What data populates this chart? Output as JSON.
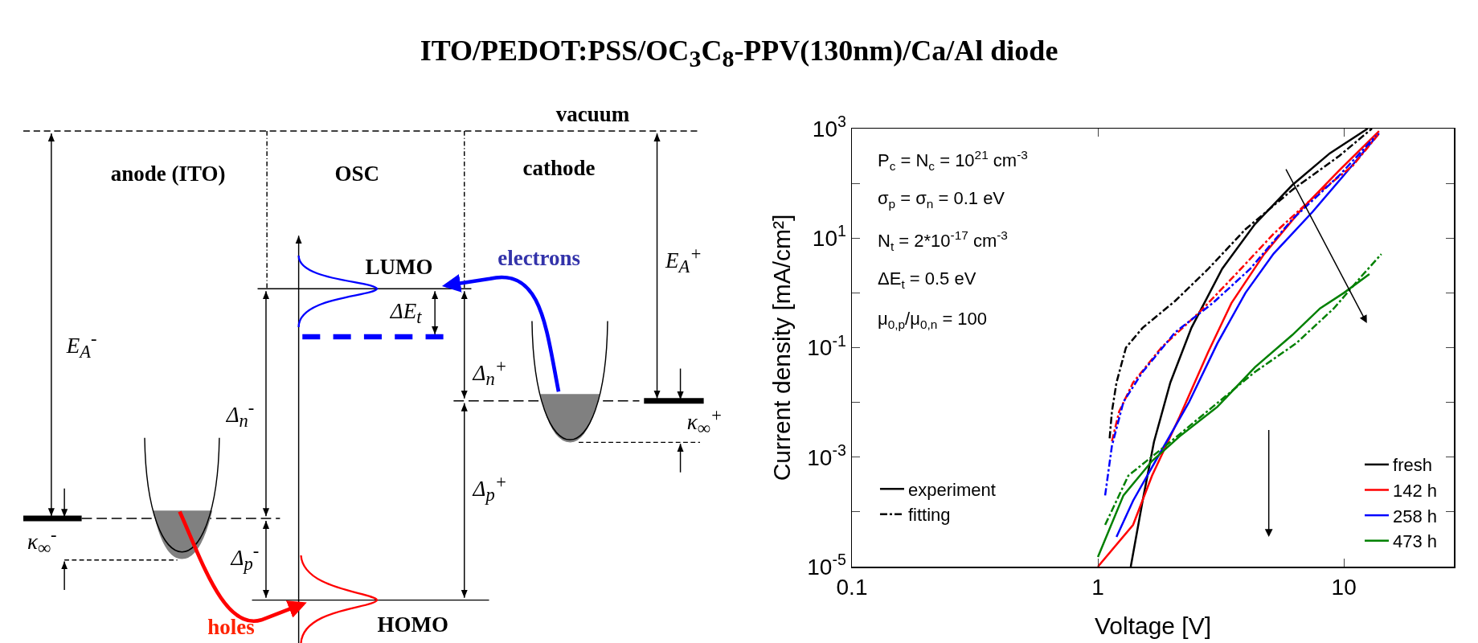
{
  "chart_data": [
    {
      "type": "other",
      "title": "ITO/PEDOT:PSS/OC$_{3}$C$_{8}$-PPV(130nm)/Ca/Al diode",
      "annotations": [
        "vacuum",
        "anode (ITO)",
        "OSC",
        "cathode",
        "LUMO",
        "electrons",
        "ΔE$_{t}$",
        "E$_{A}$$^{-}$",
        "E$_{A}$$^{+}$",
        "Δ$_{n}$$^{-}$",
        "Δ$_{n}$$^{+}$",
        "Δ$_{p}$$^{-}$",
        "Δ$_{p}$$^{+}$",
        "κ$_{∞}$$^{-}$",
        "κ$_{∞}$$^{+}$",
        "HOMO",
        "holes"
      ]
    },
    {
      "type": "line",
      "xlabel": "Voltage [V]",
      "ylabel": "Current density [mA/cm²]",
      "log": "xy",
      "xlim": [
        0.1,
        28
      ],
      "xticks": [
        0.1,
        1,
        10
      ],
      "ylim": [
        1e-05,
        1000
      ],
      "yticks": [
        {
          "value": 1e-05,
          "label": "10$^{-5}$"
        },
        {
          "value": 0.0001,
          "label": null
        },
        {
          "value": 0.001,
          "label": "10$^{-3}$"
        },
        {
          "value": 0.01,
          "label": null
        },
        {
          "value": 0.1,
          "label": "10$^{-1}$"
        },
        {
          "value": 1,
          "label": null
        },
        {
          "value": 10,
          "label": "10$^{1}$"
        },
        {
          "value": 100,
          "label": null
        },
        {
          "value": 1000,
          "label": "10$^{3}$"
        }
      ],
      "grid": false,
      "legend": "bottom right",
      "marker": "none",
      "annotations": [
        "P$_{c}$ = N$_{c}$ = 10$^{21}$ cm$^{-3}$",
        "σ$_{p}$ = σ$_{n}$ = 0.1 eV",
        "N$_{t}$ = 2*10$^{-17}$ cm$^{-3}$",
        "ΔE$_{t}$ = 0.5 eV",
        "μ$_{0,p}$/μ$_{0,n}$ = 100"
      ],
      "series": [
        {
          "name": "fresh",
          "color": "#000000",
          "line_style": "solid",
          "x": [
            1.36,
            1.52,
            1.69,
            1.97,
            2.4,
            3.2,
            4.35,
            6.17,
            8.77,
            12.5
          ],
          "values": [
            1e-05,
            0.00016,
            0.0019,
            0.023,
            0.23,
            2.75,
            18,
            93,
            355,
            1000
          ]
        },
        {
          "name": "142 h",
          "color": "#ff0000",
          "line_style": "solid",
          "x": [
            1,
            1.39,
            1.66,
            2.15,
            2.8,
            3.49,
            4.74,
            6.7,
            9.6,
            13.9
          ],
          "values": [
            1e-05,
            5.8e-05,
            0.00046,
            0.0055,
            0.081,
            0.65,
            5.1,
            33,
            174,
            900
          ]
        },
        {
          "name": "258 h",
          "color": "#0000ff",
          "line_style": "solid",
          "x": [
            1.19,
            1.39,
            1.81,
            2.35,
            3.06,
            3.98,
            5.18,
            7.45,
            10,
            13.9
          ],
          "values": [
            3.5e-05,
            0.00016,
            0.0013,
            0.0102,
            0.12,
            1,
            5.2,
            30,
            141,
            815
          ]
        },
        {
          "name": "473 h",
          "color": "#008000",
          "line_style": "solid",
          "x": [
            1,
            1.27,
            1.66,
            2.15,
            3.06,
            4.35,
            6.17,
            8,
            10,
            12.7
          ],
          "values": [
            1.5e-05,
            0.0002,
            0.00085,
            0.0024,
            0.0083,
            0.044,
            0.17,
            0.52,
            1,
            2.2
          ]
        },
        {
          "color": "#000000",
          "line_style": "dashed",
          "x": [
            1.116,
            1.14,
            1.19,
            1.3,
            1.52,
            2.06,
            2.8,
            3.98,
            6.17,
            9.6,
            13
          ],
          "values": [
            0.0022,
            0.0068,
            0.023,
            0.1,
            0.23,
            0.71,
            2.7,
            14.5,
            76,
            320,
            1000
          ]
        },
        {
          "color": "#ff0000",
          "line_style": "dashed",
          "x": [
            1.14,
            1.22,
            1.39,
            1.81,
            2.57,
            3.64,
            5.18,
            7.69,
            10.9,
            13.9
          ],
          "values": [
            0.00195,
            0.0068,
            0.023,
            0.1,
            0.43,
            2.2,
            12,
            61,
            213,
            815
          ]
        },
        {
          "color": "#0000ff",
          "line_style": "dashed",
          "x": [
            1.07,
            1.14,
            1.27,
            1.52,
            2.06,
            2.93,
            4.16,
            6.17,
            9.6,
            13.5
          ],
          "values": [
            0.0002,
            0.0016,
            0.0102,
            0.036,
            0.19,
            0.65,
            2.75,
            22,
            141,
            740
          ]
        },
        {
          "color": "#008000",
          "line_style": "dashed",
          "x": [
            1.07,
            1.33,
            1.97,
            2.93,
            4.35,
            6.4,
            9.1,
            12,
            14.2
          ],
          "values": [
            5.8e-05,
            0.00046,
            0.0019,
            0.0083,
            0.036,
            0.12,
            0.52,
            2.2,
            5.1
          ]
        },
        {
          "name": "experiment",
          "color": "#000000",
          "line_style": "solid"
        },
        {
          "name": "fitting",
          "color": "#000000",
          "line_style": "dashed"
        }
      ]
    }
  ]
}
